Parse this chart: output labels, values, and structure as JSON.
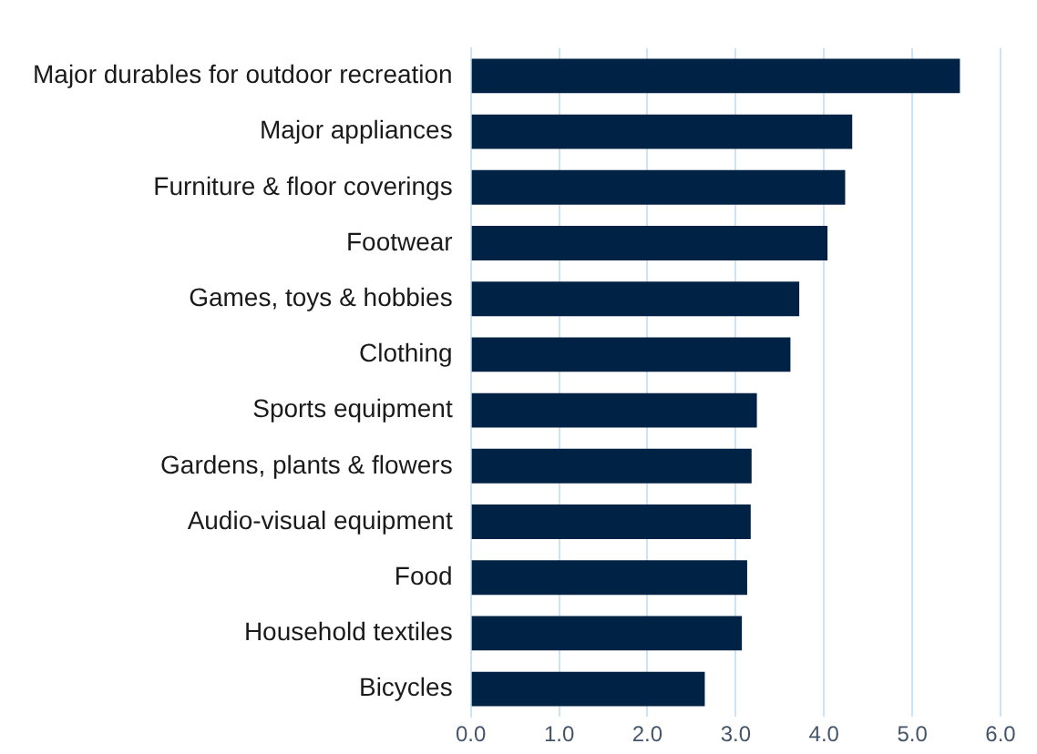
{
  "chart_data": {
    "type": "bar",
    "orientation": "horizontal",
    "categories": [
      "Major durables for outdoor recreation",
      "Major appliances",
      "Furniture & floor coverings",
      "Footwear",
      "Games, toys & hobbies",
      "Clothing",
      "Sports equipment",
      "Gardens, plants & flowers",
      "Audio-visual equipment",
      "Food",
      "Household textiles",
      "Bicycles"
    ],
    "values": [
      5.54,
      4.32,
      4.24,
      4.04,
      3.72,
      3.62,
      3.24,
      3.18,
      3.17,
      3.13,
      3.07,
      2.65
    ],
    "color": "#002244",
    "xlim": [
      0,
      6
    ],
    "xticks": [
      {
        "value": 0,
        "label": "0.0"
      },
      {
        "value": 1,
        "label": "1.0"
      },
      {
        "value": 2,
        "label": "2.0"
      },
      {
        "value": 3,
        "label": "3.0"
      },
      {
        "value": 4,
        "label": "4.0"
      },
      {
        "value": 5,
        "label": "5.0"
      },
      {
        "value": 6,
        "label": "6.0"
      }
    ],
    "grid": "x",
    "legend": false
  }
}
